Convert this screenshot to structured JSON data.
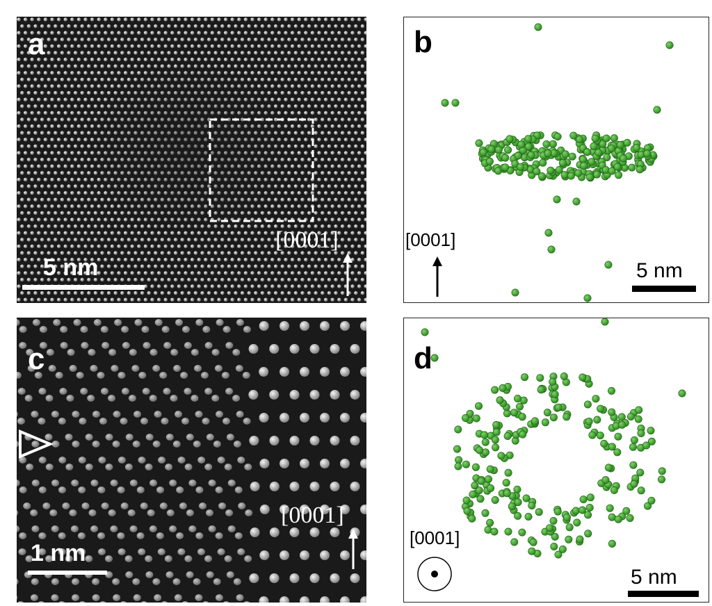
{
  "figure": {
    "panels": [
      {
        "id": "a",
        "label": "a",
        "scale_bar": "5 nm",
        "direction": "[0001]"
      },
      {
        "id": "b",
        "label": "b",
        "scale_bar": "5 nm",
        "direction": "[0001]"
      },
      {
        "id": "c",
        "label": "c",
        "scale_bar": "1 nm",
        "direction": "[0001]"
      },
      {
        "id": "d",
        "label": "d",
        "scale_bar": "5 nm",
        "direction": "[0001]"
      }
    ]
  },
  "colors": {
    "stem_background": "#1a1a1a",
    "atom_column": "#e6e6e6",
    "precipitate_atom": "#2e8b1f",
    "precipitate_atom_highlight": "#7fd36a",
    "annotation_white": "#ffffff",
    "annotation_black": "#000000"
  },
  "icons": {
    "panel_c_marker": "hollow-triangle-right-icon",
    "panel_d_direction": "out-of-plane-dot-circle-icon",
    "direction_arrow": "up-arrow-icon"
  }
}
